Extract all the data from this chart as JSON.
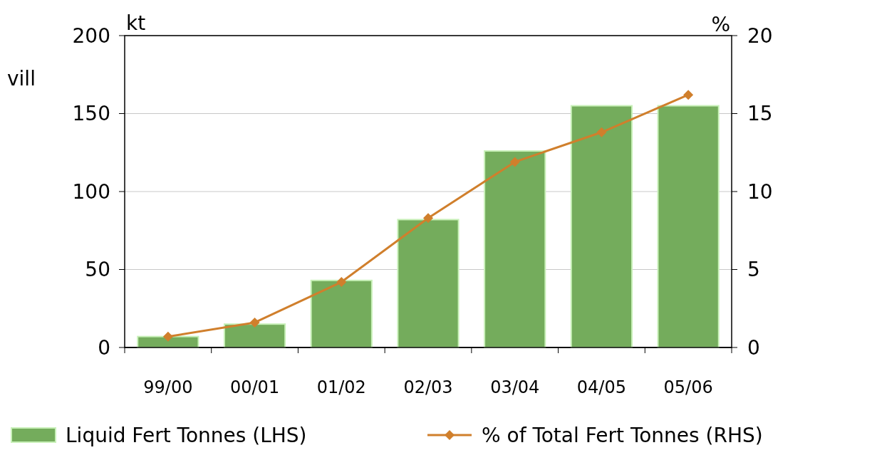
{
  "chart_data": {
    "type": "bar",
    "categories": [
      "99/00",
      "00/01",
      "01/02",
      "02/03",
      "03/04",
      "04/05",
      "05/06"
    ],
    "series": [
      {
        "name": "Liquid Fert Tonnes (LHS)",
        "color": "#74ac5c",
        "values": [
          7,
          15,
          43,
          82,
          126,
          155,
          155
        ]
      },
      {
        "name": "% of Total Fert Tonnes (RHS)",
        "type": "line",
        "axis": "y2",
        "color": "#d07f2c",
        "marker": "diamond",
        "values": [
          0.7,
          1.6,
          4.2,
          8.3,
          11.9,
          13.8,
          16.2
        ]
      }
    ],
    "ylabel": "kt",
    "y2label": "%",
    "ylim": [
      0,
      200
    ],
    "yticks": [
      0,
      50,
      100,
      150,
      200
    ],
    "y2lim": [
      0,
      20
    ],
    "y2ticks": [
      0,
      5,
      10,
      15,
      20
    ],
    "grid": "y",
    "legend": "bottom",
    "annotations": [
      "vill"
    ]
  }
}
